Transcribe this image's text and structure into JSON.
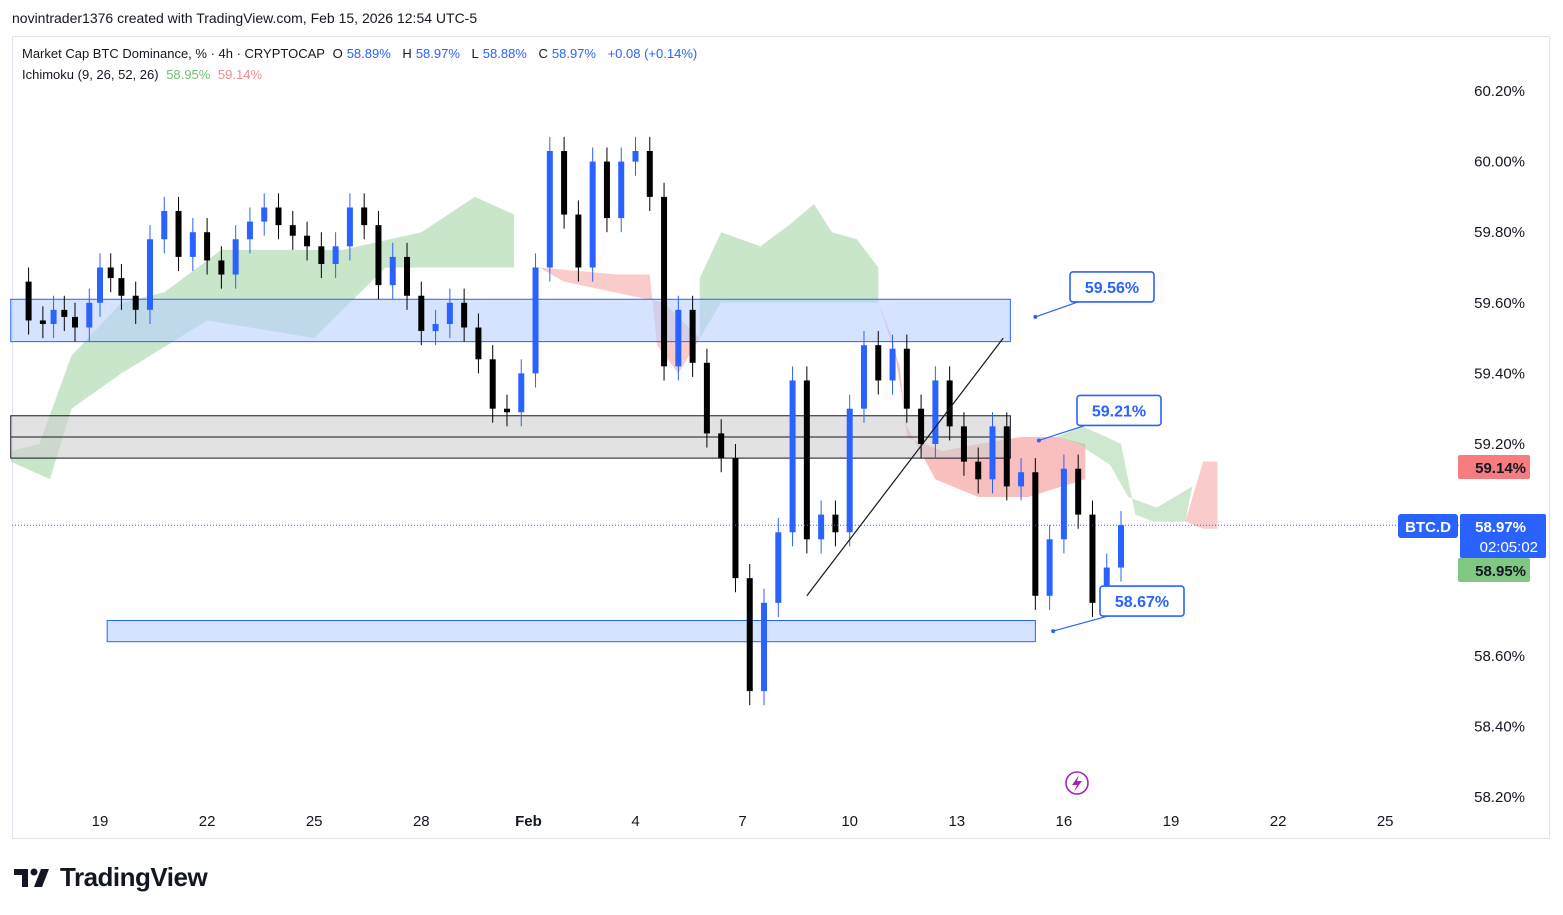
{
  "header": {
    "created_by": "novintrader1376 created with TradingView.com, Feb 15, 2026 12:54 UTC-5"
  },
  "legend": {
    "symbol": "Market Cap BTC Dominance, % · 4h · CRYPTOCAP",
    "open_label": "O",
    "open": "58.89%",
    "high_label": "H",
    "high": "58.97%",
    "low_label": "L",
    "low": "58.88%",
    "close_label": "C",
    "close": "58.97%",
    "change": "+0.08 (+0.14%)",
    "indicator": "Ichimoku (9, 26, 52, 26)",
    "ind_val1": "58.95%",
    "ind_val2": "59.14%"
  },
  "price_tag": {
    "symbol": "BTC.D",
    "price": "58.97%",
    "countdown": "02:05:02",
    "ichi_red": "59.14%",
    "ichi_green": "58.95%"
  },
  "annotations": [
    {
      "text": "59.56%",
      "price": 59.56
    },
    {
      "text": "59.21%",
      "price": 59.21
    },
    {
      "text": "58.67%",
      "price": 58.67
    }
  ],
  "logo": {
    "text": "TradingView"
  },
  "colors": {
    "accent": "#2962ff",
    "down": "#000000",
    "up": "#2962ff",
    "cloud_green": "#a5d6a7",
    "cloud_red": "#f7a9a9",
    "zone_blue": "#bbd0ff",
    "zone_gray": "#cfcfcf"
  },
  "chart_data": {
    "type": "candlestick",
    "title": "Market Cap BTC Dominance, % · 4h · CRYPTOCAP",
    "y_ticks": [
      "60.20%",
      "60.00%",
      "59.80%",
      "59.60%",
      "59.40%",
      "59.20%",
      "58.60%",
      "58.40%",
      "58.20%"
    ],
    "y_tick_values": [
      60.2,
      60.0,
      59.8,
      59.6,
      59.4,
      59.2,
      58.6,
      58.4,
      58.2
    ],
    "ylim": [
      58.2,
      60.25
    ],
    "x_ticks": [
      "19",
      "22",
      "25",
      "28",
      "Feb",
      "4",
      "7",
      "10",
      "13",
      "16",
      "19",
      "22",
      "25"
    ],
    "x_tick_days": [
      0,
      3,
      6,
      9,
      12,
      15,
      18,
      21,
      24,
      27,
      30,
      33,
      36
    ],
    "current_price": 58.97,
    "zones": [
      {
        "kind": "blue",
        "from_day": -2.5,
        "to_day": 25.5,
        "low": 59.49,
        "high": 59.61
      },
      {
        "kind": "gray",
        "from_day": -2.5,
        "to_day": 25.5,
        "low": 59.16,
        "high": 59.28,
        "mid": 59.22
      },
      {
        "kind": "blue",
        "from_day": 0.2,
        "to_day": 26.2,
        "low": 58.64,
        "high": 58.7
      }
    ],
    "trend_line": {
      "from_day": 19.8,
      "from_price": 58.77,
      "to_day": 25.3,
      "to_price": 59.5
    },
    "candles_daily_hint": "4h candles, 6 per day, 2026-01-17 to 2026-02-15",
    "close_path": [
      [
        -2.3,
        59.66
      ],
      [
        -2.0,
        59.55
      ],
      [
        -1.6,
        59.54
      ],
      [
        -1.3,
        59.58
      ],
      [
        -1.0,
        59.56
      ],
      [
        -0.7,
        59.53
      ],
      [
        -0.3,
        59.6
      ],
      [
        0.0,
        59.7
      ],
      [
        0.3,
        59.67
      ],
      [
        0.6,
        59.62
      ],
      [
        1.0,
        59.58
      ],
      [
        1.4,
        59.78
      ],
      [
        1.8,
        59.86
      ],
      [
        2.2,
        59.73
      ],
      [
        2.6,
        59.8
      ],
      [
        3.0,
        59.72
      ],
      [
        3.4,
        59.68
      ],
      [
        3.8,
        59.78
      ],
      [
        4.2,
        59.83
      ],
      [
        4.6,
        59.87
      ],
      [
        5.0,
        59.82
      ],
      [
        5.4,
        59.79
      ],
      [
        5.8,
        59.76
      ],
      [
        6.2,
        59.71
      ],
      [
        6.6,
        59.76
      ],
      [
        7.0,
        59.87
      ],
      [
        7.4,
        59.82
      ],
      [
        7.8,
        59.65
      ],
      [
        8.2,
        59.73
      ],
      [
        8.6,
        59.62
      ],
      [
        9.0,
        59.52
      ],
      [
        9.4,
        59.54
      ],
      [
        9.8,
        59.6
      ],
      [
        10.2,
        59.53
      ],
      [
        10.6,
        59.44
      ],
      [
        11.0,
        59.3
      ],
      [
        11.4,
        59.29
      ],
      [
        11.8,
        59.4
      ],
      [
        12.2,
        59.7
      ],
      [
        12.6,
        60.03
      ],
      [
        13.0,
        59.85
      ],
      [
        13.4,
        59.7
      ],
      [
        13.8,
        60.0
      ],
      [
        14.2,
        59.84
      ],
      [
        14.6,
        60.0
      ],
      [
        15.0,
        60.03
      ],
      [
        15.4,
        59.9
      ],
      [
        15.8,
        59.42
      ],
      [
        16.2,
        59.58
      ],
      [
        16.6,
        59.43
      ],
      [
        17.0,
        59.23
      ],
      [
        17.4,
        59.16
      ],
      [
        17.8,
        58.82
      ],
      [
        18.2,
        58.5
      ],
      [
        18.6,
        58.75
      ],
      [
        19.0,
        58.95
      ],
      [
        19.4,
        59.38
      ],
      [
        19.8,
        58.93
      ],
      [
        20.2,
        59.0
      ],
      [
        20.6,
        58.95
      ],
      [
        21.0,
        59.3
      ],
      [
        21.4,
        59.48
      ],
      [
        21.8,
        59.38
      ],
      [
        22.2,
        59.47
      ],
      [
        22.6,
        59.3
      ],
      [
        23.0,
        59.2
      ],
      [
        23.4,
        59.38
      ],
      [
        23.8,
        59.25
      ],
      [
        24.2,
        59.15
      ],
      [
        24.6,
        59.1
      ],
      [
        25.0,
        59.25
      ],
      [
        25.4,
        59.08
      ],
      [
        25.8,
        59.12
      ],
      [
        26.2,
        58.77
      ],
      [
        26.6,
        58.93
      ],
      [
        27.0,
        59.13
      ],
      [
        27.4,
        59.0
      ],
      [
        27.8,
        58.75
      ],
      [
        28.2,
        58.85
      ],
      [
        28.6,
        58.97
      ]
    ]
  }
}
